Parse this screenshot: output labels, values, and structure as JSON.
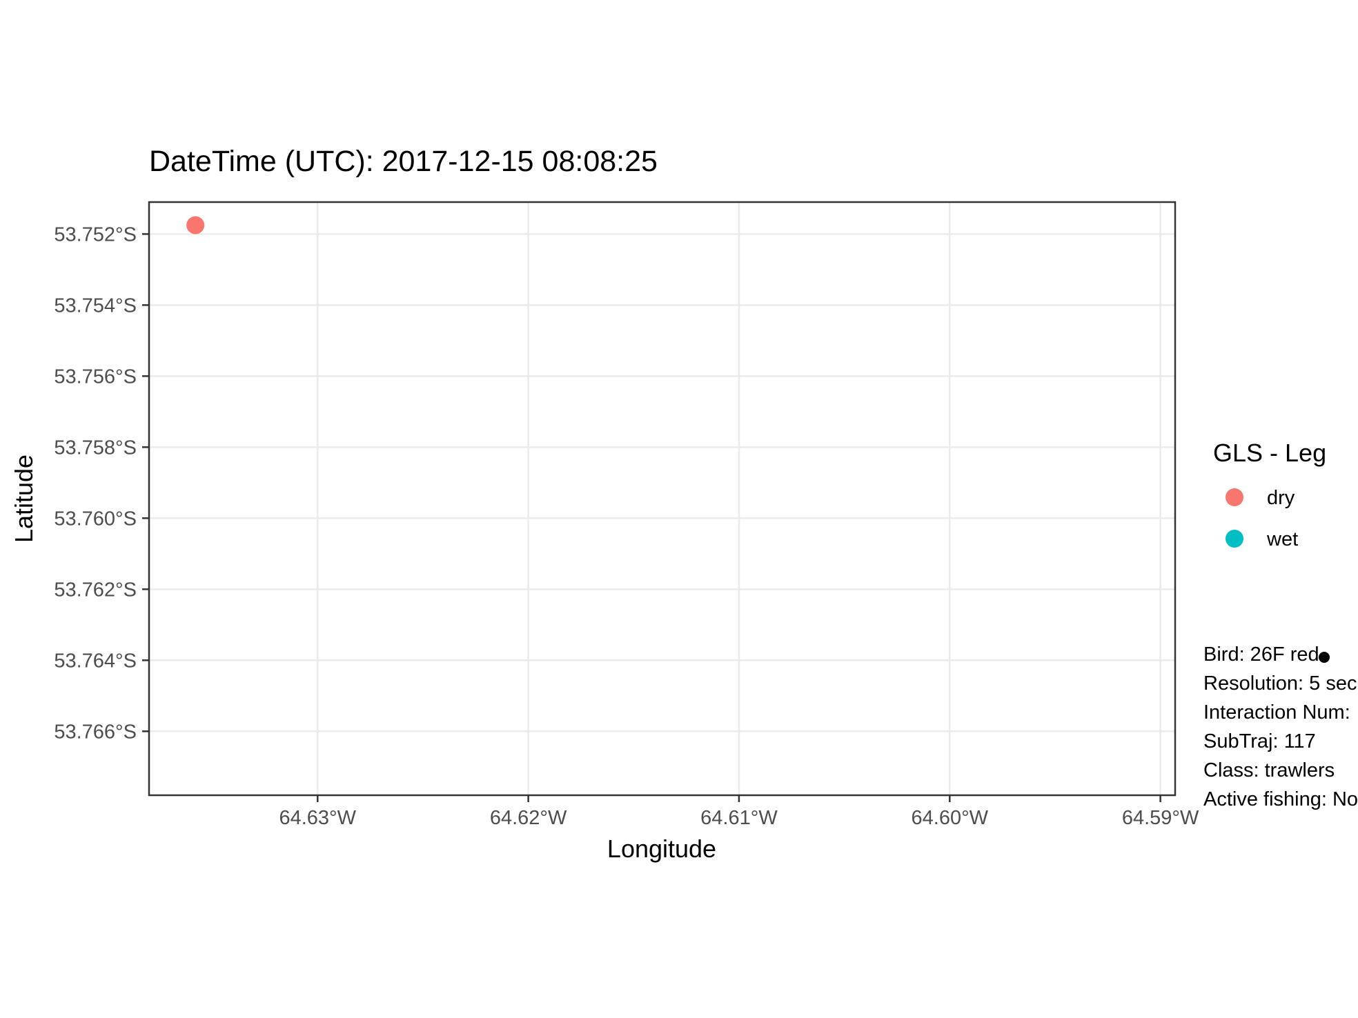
{
  "chart_data": {
    "type": "scatter",
    "title": "DateTime (UTC): 2017-12-15 08:08:25",
    "xlabel": "Longitude",
    "ylabel": "Latitude",
    "xlim": [
      -64.638,
      -64.5893
    ],
    "ylim": [
      -53.7678,
      -53.7511
    ],
    "x_ticks": [
      {
        "value": -64.63,
        "label": "64.63°W"
      },
      {
        "value": -64.62,
        "label": "64.62°W"
      },
      {
        "value": -64.61,
        "label": "64.61°W"
      },
      {
        "value": -64.6,
        "label": "64.60°W"
      },
      {
        "value": -64.59,
        "label": "64.59°W"
      }
    ],
    "y_ticks": [
      {
        "value": -53.752,
        "label": "53.752°S"
      },
      {
        "value": -53.754,
        "label": "53.754°S"
      },
      {
        "value": -53.756,
        "label": "53.756°S"
      },
      {
        "value": -53.758,
        "label": "53.758°S"
      },
      {
        "value": -53.76,
        "label": "53.760°S"
      },
      {
        "value": -53.762,
        "label": "53.762°S"
      },
      {
        "value": -53.764,
        "label": "53.764°S"
      },
      {
        "value": -53.766,
        "label": "53.766°S"
      }
    ],
    "grid": true,
    "legend": {
      "title": "GLS - Leg",
      "position": "right",
      "entries": [
        {
          "label": "dry",
          "color": "#F8766D"
        },
        {
          "label": "wet",
          "color": "#00BFC4"
        }
      ]
    },
    "series": [
      {
        "name": "dry",
        "color": "#F8766D",
        "points": [
          {
            "x": -64.6358,
            "y": -53.75175
          }
        ]
      }
    ],
    "vessel_marker": {
      "color": "#000000"
    },
    "annotation_lines": [
      "Bird: 26F red",
      "Resolution: 5 sec",
      "Interaction Num:",
      "SubTraj: 117",
      "Class: trawlers",
      "Active fishing: No"
    ]
  }
}
